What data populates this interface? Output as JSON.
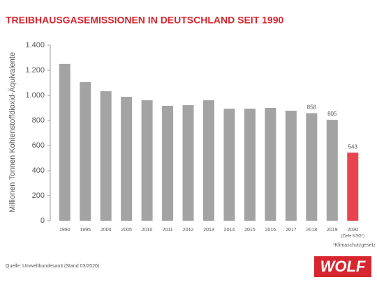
{
  "chart_data": {
    "type": "bar",
    "title": "TREIBHAUSGASEMISSIONEN IN DEUTSCHLAND SEIT 1990",
    "y_label": "Millionen Tonnen Kohlenstoffdioxid-Äquivalente",
    "categories": [
      "1990",
      "1995",
      "2000",
      "2005",
      "2010",
      "2011",
      "2012",
      "2013",
      "2014",
      "2015",
      "2016",
      "2017",
      "2018",
      "2019",
      "2030"
    ],
    "category_note": "(Ziele KSG*)",
    "values": [
      1251,
      1106,
      1033,
      989,
      961,
      917,
      922,
      961,
      894,
      894,
      900,
      878,
      858,
      805,
      543
    ],
    "value_labels": [
      null,
      null,
      null,
      null,
      null,
      null,
      null,
      null,
      null,
      null,
      null,
      null,
      "858",
      "805",
      "543"
    ],
    "colors": [
      "#a3a3a3",
      "#a3a3a3",
      "#a3a3a3",
      "#a3a3a3",
      "#a3a3a3",
      "#a3a3a3",
      "#a3a3a3",
      "#a3a3a3",
      "#a3a3a3",
      "#a3a3a3",
      "#a3a3a3",
      "#a3a3a3",
      "#a3a3a3",
      "#a3a3a3",
      "#e84450"
    ],
    "ylim": [
      0,
      1400
    ],
    "yticks": [
      0,
      200,
      400,
      600,
      800,
      {
        "value": 1000,
        "label": "1.000"
      },
      {
        "value": 1200,
        "label": "1.200"
      },
      {
        "value": 1400,
        "label": "1.400"
      }
    ],
    "grid": false,
    "footnote": "*Klimaschutzgesetz",
    "source": "Quelle: Umweltbundesamt (Stand 03/2020)",
    "logo": "WOLF"
  }
}
